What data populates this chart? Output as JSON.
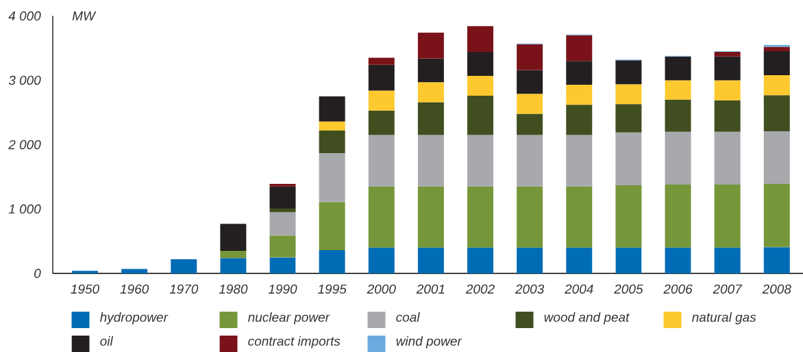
{
  "chart_data": {
    "type": "bar",
    "stacked": true,
    "ylabel": "MW",
    "categories": [
      "1950",
      "1960",
      "1970",
      "1980",
      "1990",
      "1995",
      "2000",
      "2001",
      "2002",
      "2003",
      "2004",
      "2005",
      "2006",
      "2007",
      "2008"
    ],
    "series": [
      {
        "name": "hydropower",
        "color": "#006cb5",
        "values": [
          40,
          70,
          220,
          240,
          250,
          360,
          400,
          400,
          400,
          400,
          400,
          400,
          400,
          400,
          410
        ]
      },
      {
        "name": "nuclear power",
        "color": "#76963a",
        "values": [
          null,
          null,
          null,
          110,
          340,
          750,
          950,
          950,
          950,
          950,
          950,
          970,
          980,
          980,
          980
        ]
      },
      {
        "name": "coal",
        "color": "#a8a9ad",
        "values": [
          null,
          null,
          null,
          null,
          360,
          760,
          800,
          800,
          800,
          800,
          800,
          820,
          820,
          820,
          820
        ]
      },
      {
        "name": "wood and peat",
        "color": "#414e20",
        "values": [
          null,
          null,
          null,
          null,
          60,
          350,
          380,
          510,
          610,
          330,
          470,
          440,
          500,
          490,
          560
        ]
      },
      {
        "name": "natural gas",
        "color": "#fdc92e",
        "values": [
          null,
          null,
          null,
          null,
          null,
          140,
          310,
          310,
          310,
          310,
          310,
          310,
          300,
          310,
          310
        ]
      },
      {
        "name": "oil",
        "color": "#231f20",
        "values": [
          null,
          null,
          null,
          420,
          340,
          390,
          400,
          370,
          370,
          370,
          370,
          370,
          370,
          370,
          370
        ]
      },
      {
        "name": "contract imports",
        "color": "#7a1219",
        "values": [
          null,
          null,
          null,
          null,
          40,
          null,
          110,
          400,
          400,
          400,
          400,
          null,
          null,
          70,
          70
        ]
      },
      {
        "name": "wind power",
        "color": "#6aaadf",
        "values": [
          null,
          null,
          null,
          null,
          null,
          null,
          null,
          null,
          null,
          10,
          10,
          10,
          10,
          10,
          30
        ]
      }
    ],
    "ylim": [
      0,
      4000
    ],
    "yticks": [
      0,
      {
        "value": 1000,
        "label": "1 000"
      },
      {
        "value": 2000,
        "label": "2 000"
      },
      {
        "value": 3000,
        "label": "3 000"
      },
      {
        "value": 4000,
        "label": "4 000"
      }
    ],
    "legend": "bottom"
  }
}
